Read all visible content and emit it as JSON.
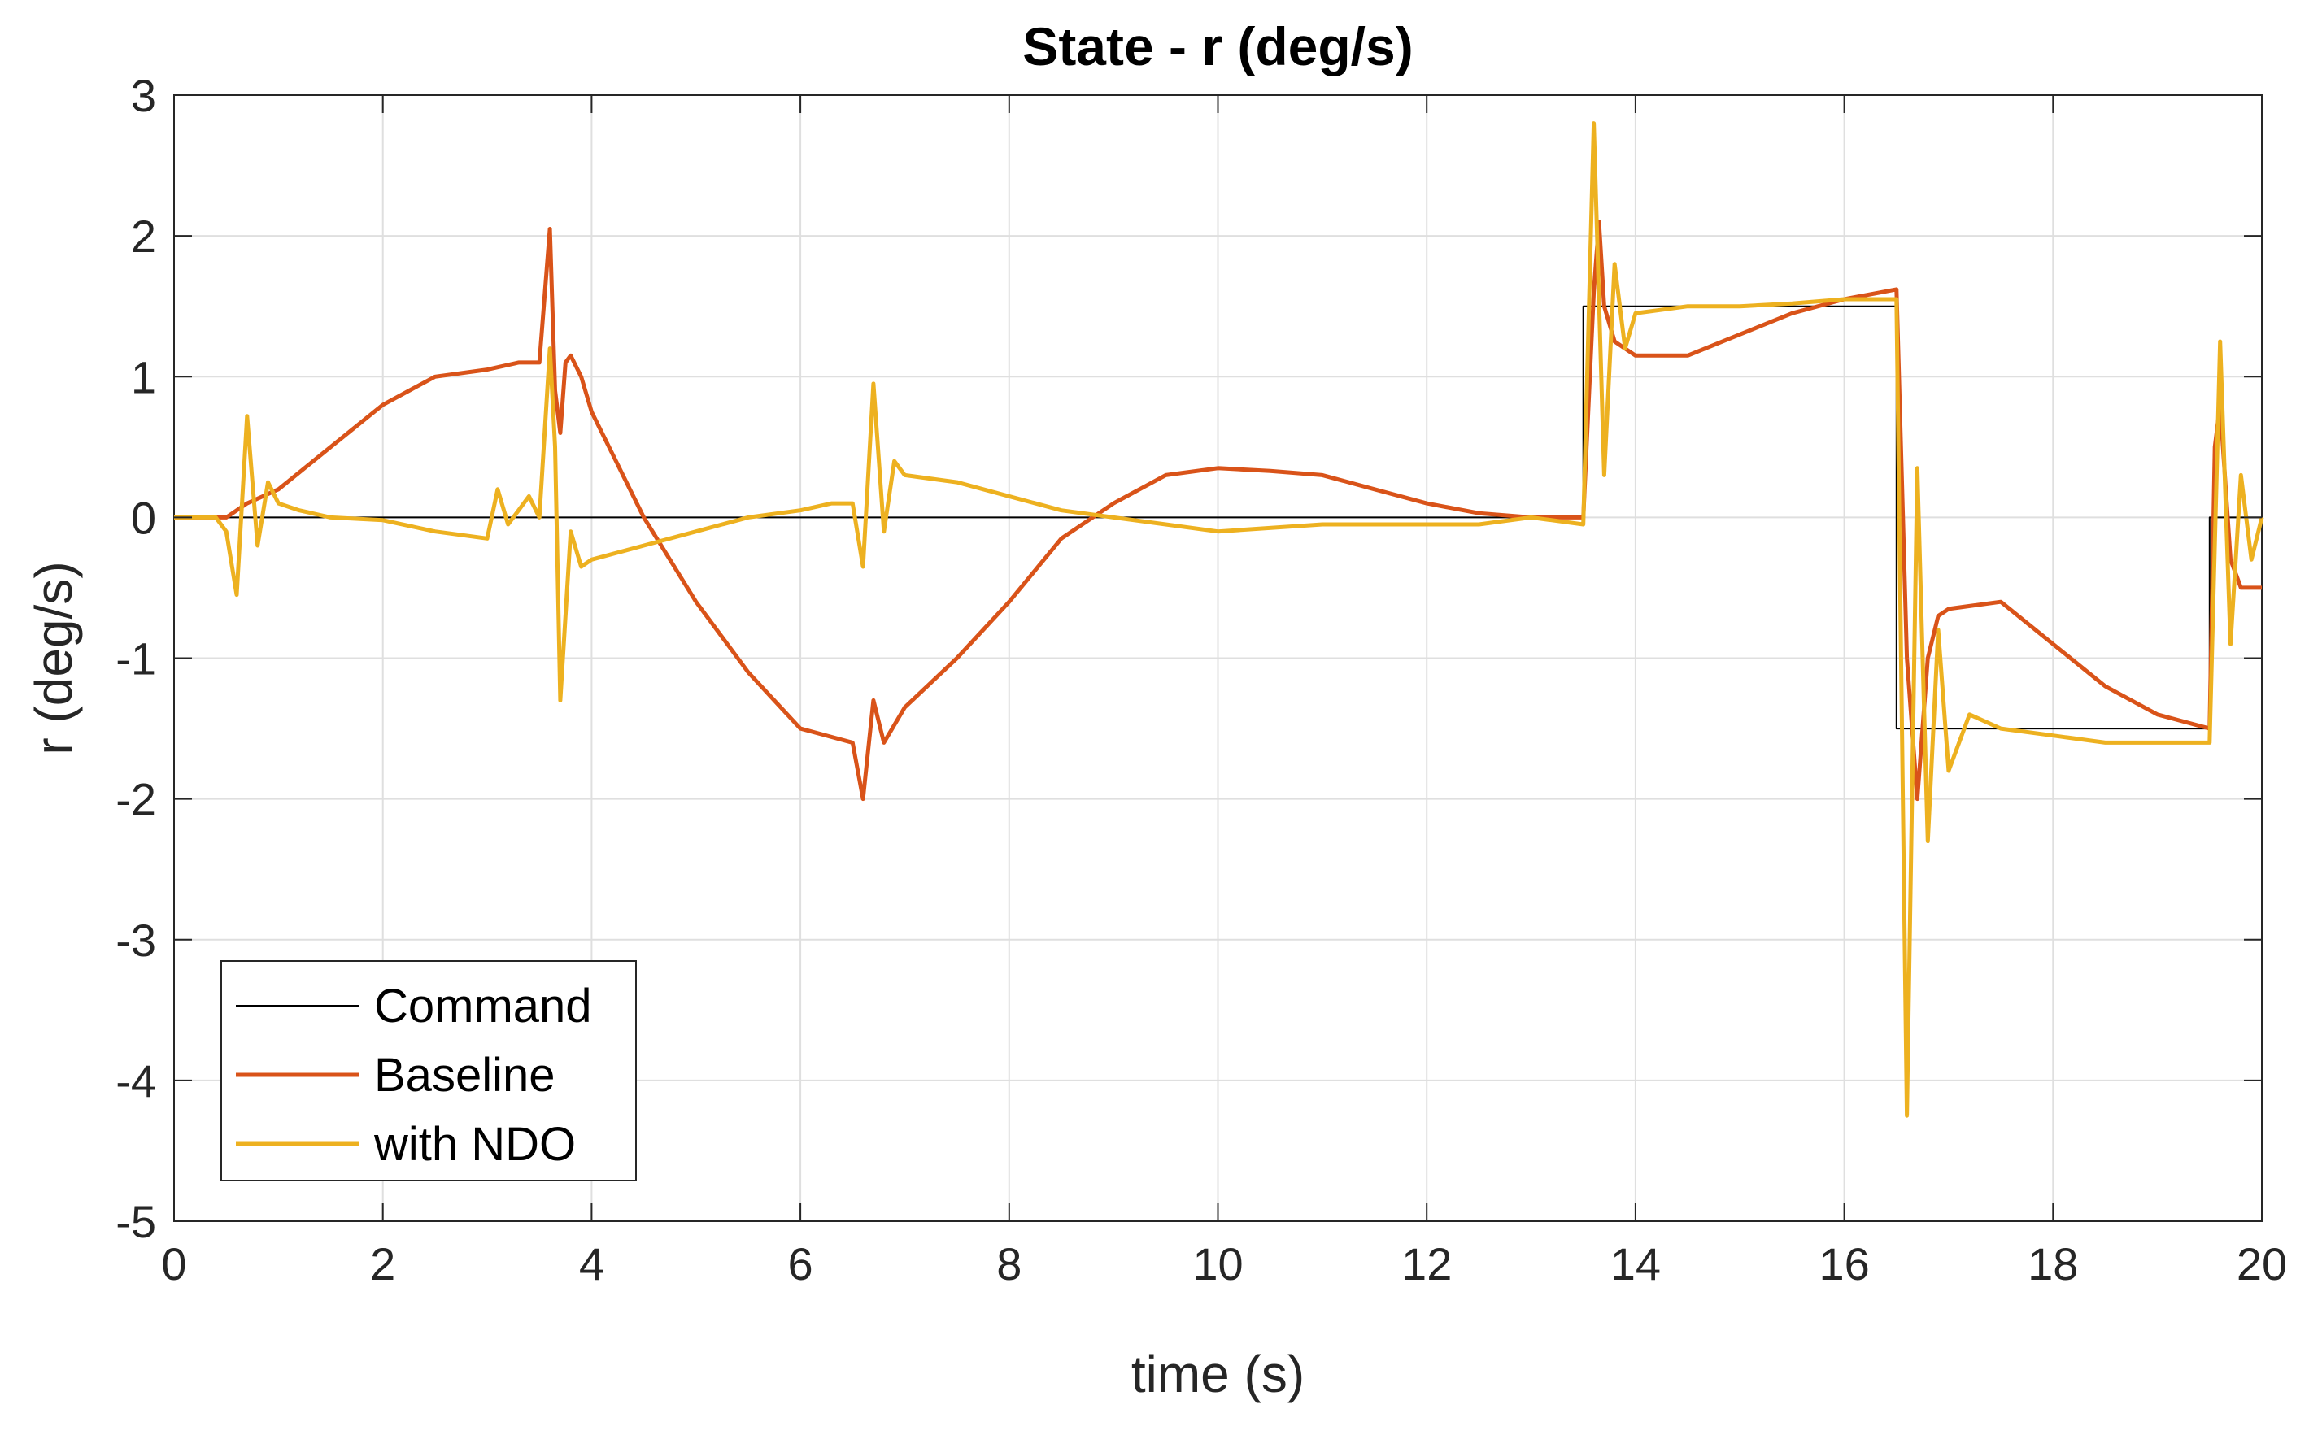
{
  "chart_data": {
    "type": "line",
    "title": "State - r (deg/s)",
    "xlabel": "time (s)",
    "ylabel": "r (deg/s)",
    "xlim": [
      0,
      20
    ],
    "ylim": [
      -5,
      3
    ],
    "xticks": [
      0,
      2,
      4,
      6,
      8,
      10,
      12,
      14,
      16,
      18,
      20
    ],
    "yticks": [
      -5,
      -4,
      -3,
      -2,
      -1,
      0,
      1,
      2,
      3
    ],
    "grid": true,
    "legend_position": "bottom-left",
    "series": [
      {
        "name": "Command",
        "color": "#000000",
        "points": [
          [
            0,
            0
          ],
          [
            13.5,
            0
          ],
          [
            13.5,
            1.5
          ],
          [
            16.5,
            1.5
          ],
          [
            16.5,
            -1.5
          ],
          [
            19.5,
            -1.5
          ],
          [
            19.5,
            0
          ],
          [
            20,
            0
          ]
        ]
      },
      {
        "name": "Baseline",
        "color": "#D95319",
        "points": [
          [
            0,
            0
          ],
          [
            0.5,
            0
          ],
          [
            0.7,
            0.1
          ],
          [
            1,
            0.2
          ],
          [
            1.5,
            0.5
          ],
          [
            2,
            0.8
          ],
          [
            2.5,
            1.0
          ],
          [
            3,
            1.05
          ],
          [
            3.3,
            1.1
          ],
          [
            3.5,
            1.1
          ],
          [
            3.6,
            2.05
          ],
          [
            3.65,
            0.9
          ],
          [
            3.7,
            0.6
          ],
          [
            3.75,
            1.1
          ],
          [
            3.8,
            1.15
          ],
          [
            3.9,
            1.0
          ],
          [
            4,
            0.75
          ],
          [
            4.5,
            0
          ],
          [
            5,
            -0.6
          ],
          [
            5.5,
            -1.1
          ],
          [
            6,
            -1.5
          ],
          [
            6.5,
            -1.6
          ],
          [
            6.6,
            -2.0
          ],
          [
            6.7,
            -1.3
          ],
          [
            6.8,
            -1.6
          ],
          [
            7,
            -1.35
          ],
          [
            7.5,
            -1.0
          ],
          [
            8,
            -0.6
          ],
          [
            8.5,
            -0.15
          ],
          [
            9,
            0.1
          ],
          [
            9.5,
            0.3
          ],
          [
            10,
            0.35
          ],
          [
            10.5,
            0.33
          ],
          [
            11,
            0.3
          ],
          [
            11.5,
            0.2
          ],
          [
            12,
            0.1
          ],
          [
            12.5,
            0.03
          ],
          [
            13,
            0
          ],
          [
            13.5,
            0
          ],
          [
            13.6,
            1.6
          ],
          [
            13.65,
            2.1
          ],
          [
            13.7,
            1.5
          ],
          [
            13.8,
            1.25
          ],
          [
            14,
            1.15
          ],
          [
            14.5,
            1.15
          ],
          [
            15,
            1.3
          ],
          [
            15.5,
            1.45
          ],
          [
            16,
            1.55
          ],
          [
            16.5,
            1.62
          ],
          [
            16.6,
            -1.0
          ],
          [
            16.7,
            -2.0
          ],
          [
            16.8,
            -1.0
          ],
          [
            16.9,
            -0.7
          ],
          [
            17,
            -0.65
          ],
          [
            17.5,
            -0.6
          ],
          [
            18,
            -0.9
          ],
          [
            18.5,
            -1.2
          ],
          [
            19,
            -1.4
          ],
          [
            19.5,
            -1.5
          ],
          [
            19.55,
            0.5
          ],
          [
            19.6,
            0.8
          ],
          [
            19.7,
            -0.3
          ],
          [
            19.8,
            -0.5
          ],
          [
            20,
            -0.5
          ]
        ]
      },
      {
        "name": "with NDO",
        "color": "#EDB120",
        "points": [
          [
            0,
            0
          ],
          [
            0.4,
            0
          ],
          [
            0.5,
            -0.1
          ],
          [
            0.6,
            -0.55
          ],
          [
            0.7,
            0.72
          ],
          [
            0.8,
            -0.2
          ],
          [
            0.9,
            0.25
          ],
          [
            1,
            0.1
          ],
          [
            1.2,
            0.05
          ],
          [
            1.5,
            0
          ],
          [
            2,
            -0.02
          ],
          [
            2.5,
            -0.1
          ],
          [
            3,
            -0.15
          ],
          [
            3.1,
            0.2
          ],
          [
            3.2,
            -0.05
          ],
          [
            3.4,
            0.15
          ],
          [
            3.5,
            0
          ],
          [
            3.6,
            1.2
          ],
          [
            3.65,
            0.5
          ],
          [
            3.7,
            -1.3
          ],
          [
            3.8,
            -0.1
          ],
          [
            3.9,
            -0.35
          ],
          [
            4,
            -0.3
          ],
          [
            4.5,
            -0.2
          ],
          [
            5,
            -0.1
          ],
          [
            5.5,
            0
          ],
          [
            6,
            0.05
          ],
          [
            6.3,
            0.1
          ],
          [
            6.5,
            0.1
          ],
          [
            6.6,
            -0.35
          ],
          [
            6.7,
            0.95
          ],
          [
            6.8,
            -0.1
          ],
          [
            6.9,
            0.4
          ],
          [
            7,
            0.3
          ],
          [
            7.5,
            0.25
          ],
          [
            8,
            0.15
          ],
          [
            8.5,
            0.05
          ],
          [
            9,
            0
          ],
          [
            9.5,
            -0.05
          ],
          [
            10,
            -0.1
          ],
          [
            11,
            -0.05
          ],
          [
            12,
            -0.05
          ],
          [
            12.5,
            -0.05
          ],
          [
            13,
            0
          ],
          [
            13.5,
            -0.05
          ],
          [
            13.6,
            2.8
          ],
          [
            13.7,
            0.3
          ],
          [
            13.8,
            1.8
          ],
          [
            13.9,
            1.2
          ],
          [
            14,
            1.45
          ],
          [
            14.5,
            1.5
          ],
          [
            15,
            1.5
          ],
          [
            15.5,
            1.52
          ],
          [
            16,
            1.55
          ],
          [
            16.5,
            1.55
          ],
          [
            16.6,
            -4.25
          ],
          [
            16.7,
            0.35
          ],
          [
            16.8,
            -2.3
          ],
          [
            16.9,
            -0.8
          ],
          [
            17,
            -1.8
          ],
          [
            17.2,
            -1.4
          ],
          [
            17.5,
            -1.5
          ],
          [
            18,
            -1.55
          ],
          [
            18.5,
            -1.6
          ],
          [
            19,
            -1.6
          ],
          [
            19.5,
            -1.6
          ],
          [
            19.6,
            1.25
          ],
          [
            19.7,
            -0.9
          ],
          [
            19.8,
            0.3
          ],
          [
            19.9,
            -0.3
          ],
          [
            20,
            0
          ]
        ]
      }
    ]
  }
}
